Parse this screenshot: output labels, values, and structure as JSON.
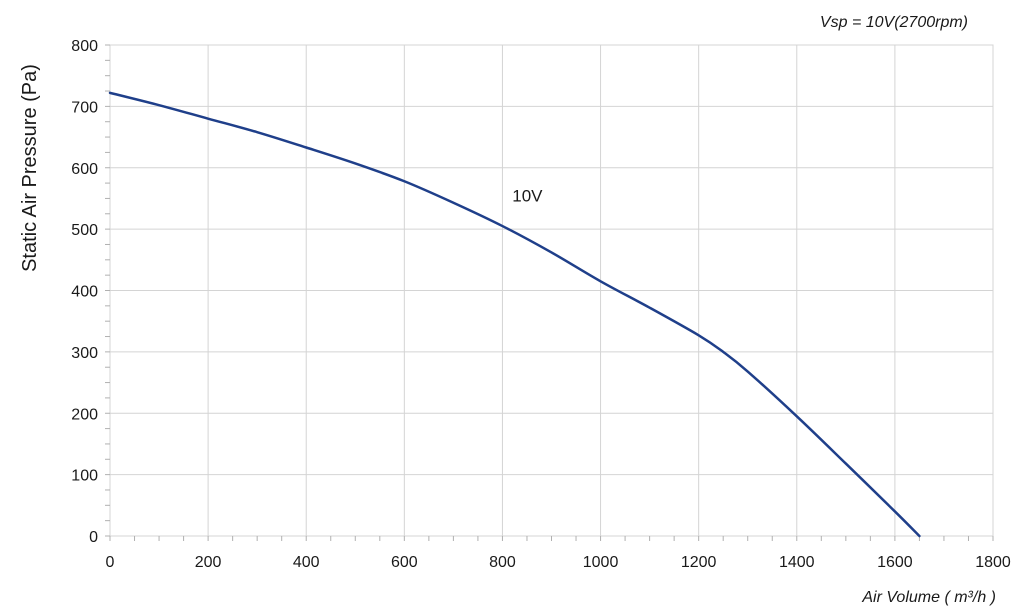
{
  "chart_data": {
    "type": "line",
    "title": "Vsp = 10V(2700rpm)",
    "xlabel": "Air Volume ( m³/h )",
    "ylabel": "Static Air Pressure  (Pa)",
    "xlim": [
      0,
      1800
    ],
    "ylim": [
      0,
      800
    ],
    "xticks": [
      "0",
      "200",
      "400",
      "600",
      "800",
      "1000",
      "1200",
      "1400",
      "1600",
      "1800"
    ],
    "yticks": [
      "0",
      "100",
      "200",
      "300",
      "400",
      "500",
      "600",
      "700",
      "800"
    ],
    "grid": true,
    "line_color": "#1f3f8a",
    "series": [
      {
        "label": "10V",
        "x": [
          0,
          100,
          200,
          300,
          400,
          500,
          600,
          700,
          800,
          900,
          1000,
          1100,
          1200,
          1250,
          1300,
          1400,
          1500,
          1600,
          1650
        ],
        "y": [
          722,
          702,
          680,
          658,
          633,
          607,
          578,
          543,
          505,
          462,
          415,
          372,
          327,
          300,
          268,
          195,
          118,
          40,
          0
        ]
      }
    ]
  }
}
